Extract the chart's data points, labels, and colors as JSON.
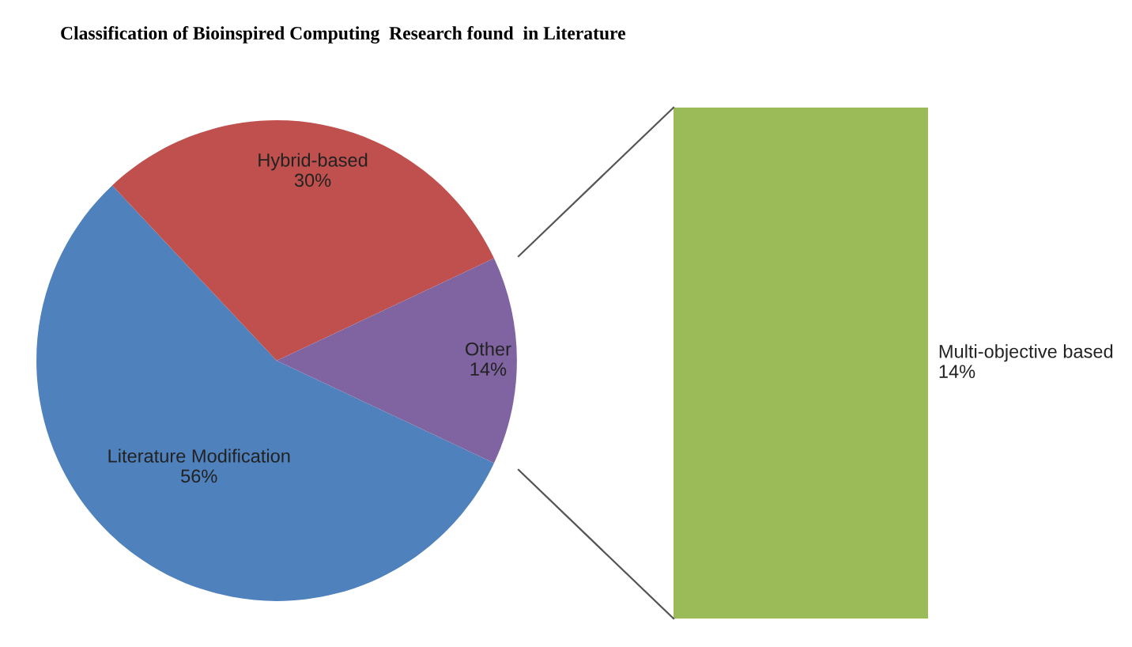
{
  "chart_data": [
    {
      "type": "pie",
      "title": "Classification of Bioinspired Computing  Research found  in Literature",
      "categories": [
        "Literature Modification",
        "Hybrid-based",
        "Other"
      ],
      "values": [
        56,
        30,
        14
      ],
      "colors": [
        "#4f81bd",
        "#c0504d",
        "#8064a2"
      ],
      "value_labels": [
        "56%",
        "30%",
        "14%"
      ]
    },
    {
      "type": "other",
      "categories": [
        "Multi-objective based"
      ],
      "values": [
        14
      ],
      "colors": [
        "#9bbb59"
      ],
      "value_labels": [
        "14%"
      ]
    }
  ]
}
